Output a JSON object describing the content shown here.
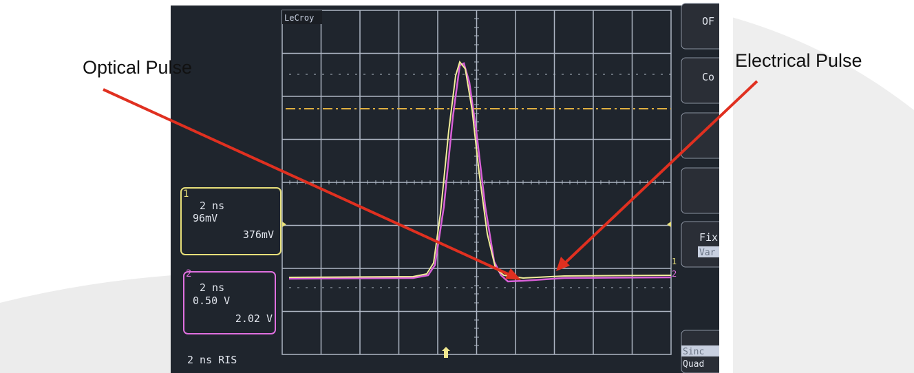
{
  "annotations": {
    "left": "Optical Pulse",
    "right": "Electrical Pulse"
  },
  "scope": {
    "brand": "LeCroy",
    "channel1": {
      "marker": "1",
      "timebase": "2 ns",
      "scale": "96mV",
      "offset": "376mV"
    },
    "channel2": {
      "marker": "2",
      "timebase": "2 ns",
      "scale": "0.50 V",
      "offset": "2.02 V"
    },
    "mode": "2 ns RIS",
    "menu": [
      "OF",
      "Co",
      "Fix",
      "Var",
      "Sinc",
      "Quad"
    ]
  }
}
